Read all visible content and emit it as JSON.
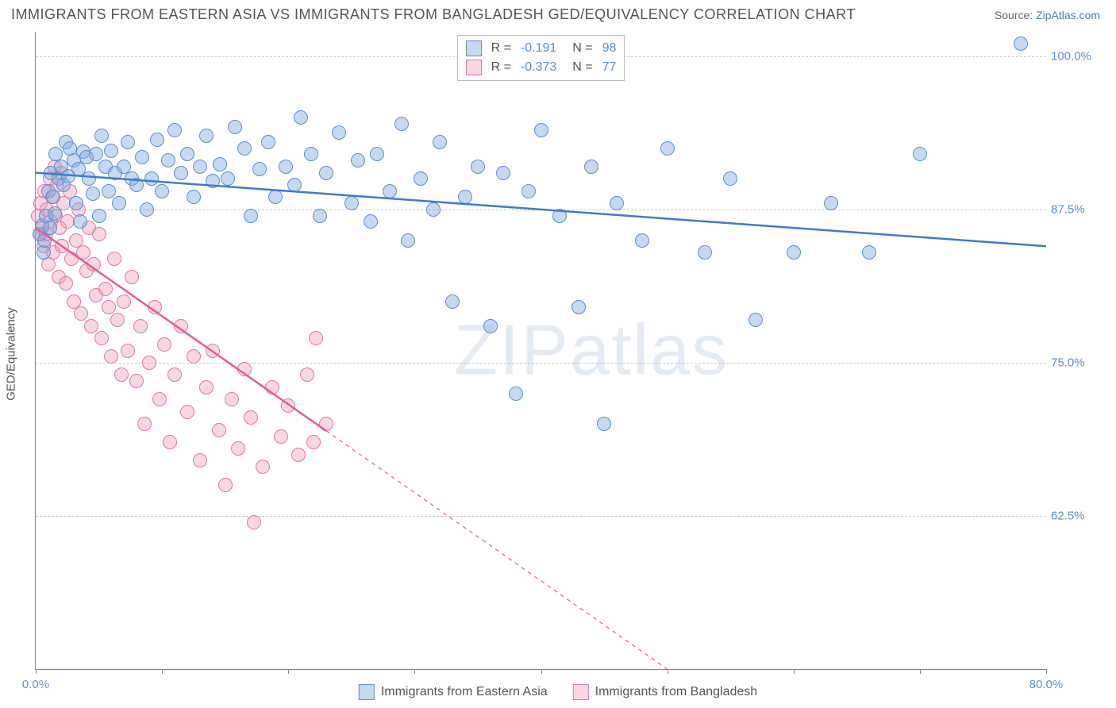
{
  "header": {
    "title": "IMMIGRANTS FROM EASTERN ASIA VS IMMIGRANTS FROM BANGLADESH GED/EQUIVALENCY CORRELATION CHART",
    "source_prefix": "Source: ",
    "source_link": "ZipAtlas.com"
  },
  "chart": {
    "type": "scatter",
    "background_color": "#ffffff",
    "grid_color": "#cccccc",
    "axis_color": "#888888",
    "y_axis_title": "GED/Equivalency",
    "xlim": [
      0,
      80
    ],
    "ylim": [
      50,
      102
    ],
    "x_ticks": [
      0,
      10,
      20,
      30,
      40,
      50,
      60,
      70,
      80
    ],
    "x_tick_labels": {
      "0": "0.0%",
      "80": "80.0%"
    },
    "y_ticks": [
      62.5,
      75.0,
      87.5,
      100.0
    ],
    "y_tick_labels": [
      "62.5%",
      "75.0%",
      "87.5%",
      "100.0%"
    ],
    "tick_label_color": "#5b8fd6",
    "tick_fontsize": 15,
    "series": [
      {
        "name": "Immigrants from Eastern Asia",
        "marker_fill": "rgba(130,170,220,0.45)",
        "marker_stroke": "#5b8fd6",
        "marker_radius": 9,
        "r_label": "R =",
        "r_value": "-0.191",
        "n_label": "N =",
        "n_value": "98",
        "trend": {
          "x1": 0,
          "y1": 90.5,
          "x2": 80,
          "y2": 84.5,
          "color": "#3f7ccc",
          "width": 2.5,
          "solid_until_x": 80
        },
        "points": [
          [
            0.3,
            85.5
          ],
          [
            0.5,
            86.2
          ],
          [
            0.6,
            84.0
          ],
          [
            0.7,
            85.0
          ],
          [
            0.8,
            87.0
          ],
          [
            1.0,
            89.0
          ],
          [
            1.1,
            86.0
          ],
          [
            1.2,
            90.5
          ],
          [
            1.4,
            88.5
          ],
          [
            1.5,
            87.2
          ],
          [
            1.6,
            92.0
          ],
          [
            1.8,
            90.0
          ],
          [
            2.0,
            91.0
          ],
          [
            2.2,
            89.5
          ],
          [
            2.4,
            93.0
          ],
          [
            2.6,
            90.2
          ],
          [
            2.7,
            92.5
          ],
          [
            3.0,
            91.5
          ],
          [
            3.2,
            88.0
          ],
          [
            3.4,
            90.8
          ],
          [
            3.5,
            86.5
          ],
          [
            3.8,
            92.2
          ],
          [
            4.0,
            91.8
          ],
          [
            4.2,
            90.0
          ],
          [
            4.5,
            88.8
          ],
          [
            4.8,
            92.0
          ],
          [
            5.0,
            87.0
          ],
          [
            5.2,
            93.5
          ],
          [
            5.5,
            91.0
          ],
          [
            5.8,
            89.0
          ],
          [
            6.0,
            92.3
          ],
          [
            6.3,
            90.5
          ],
          [
            6.6,
            88.0
          ],
          [
            7.0,
            91.0
          ],
          [
            7.3,
            93.0
          ],
          [
            7.6,
            90.0
          ],
          [
            8.0,
            89.5
          ],
          [
            8.4,
            91.8
          ],
          [
            8.8,
            87.5
          ],
          [
            9.2,
            90.0
          ],
          [
            9.6,
            93.2
          ],
          [
            10.0,
            89.0
          ],
          [
            10.5,
            91.5
          ],
          [
            11.0,
            94.0
          ],
          [
            11.5,
            90.5
          ],
          [
            12.0,
            92.0
          ],
          [
            12.5,
            88.5
          ],
          [
            13.0,
            91.0
          ],
          [
            13.5,
            93.5
          ],
          [
            14.0,
            89.8
          ],
          [
            14.6,
            91.2
          ],
          [
            15.2,
            90.0
          ],
          [
            15.8,
            94.2
          ],
          [
            16.5,
            92.5
          ],
          [
            17.0,
            87.0
          ],
          [
            17.7,
            90.8
          ],
          [
            18.4,
            93.0
          ],
          [
            19.0,
            88.5
          ],
          [
            19.8,
            91.0
          ],
          [
            20.5,
            89.5
          ],
          [
            21.0,
            95.0
          ],
          [
            21.8,
            92.0
          ],
          [
            22.5,
            87.0
          ],
          [
            23.0,
            90.5
          ],
          [
            24.0,
            93.8
          ],
          [
            25.0,
            88.0
          ],
          [
            25.5,
            91.5
          ],
          [
            26.5,
            86.5
          ],
          [
            27.0,
            92.0
          ],
          [
            28.0,
            89.0
          ],
          [
            29.0,
            94.5
          ],
          [
            29.5,
            85.0
          ],
          [
            30.5,
            90.0
          ],
          [
            31.5,
            87.5
          ],
          [
            32.0,
            93.0
          ],
          [
            33.0,
            80.0
          ],
          [
            34.0,
            88.5
          ],
          [
            35.0,
            91.0
          ],
          [
            36.0,
            78.0
          ],
          [
            37.0,
            90.5
          ],
          [
            38.0,
            72.5
          ],
          [
            39.0,
            89.0
          ],
          [
            40.0,
            94.0
          ],
          [
            41.5,
            87.0
          ],
          [
            43.0,
            79.5
          ],
          [
            44.0,
            91.0
          ],
          [
            45.0,
            70.0
          ],
          [
            46.0,
            88.0
          ],
          [
            48.0,
            85.0
          ],
          [
            50.0,
            92.5
          ],
          [
            53.0,
            84.0
          ],
          [
            55.0,
            90.0
          ],
          [
            57.0,
            78.5
          ],
          [
            60.0,
            84.0
          ],
          [
            63.0,
            88.0
          ],
          [
            66.0,
            84.0
          ],
          [
            70.0,
            92.0
          ],
          [
            78.0,
            101.0
          ]
        ]
      },
      {
        "name": "Immigrants from Bangladesh",
        "marker_fill": "rgba(240,155,180,0.40)",
        "marker_stroke": "#e378a0",
        "marker_radius": 9,
        "r_label": "R =",
        "r_value": "-0.373",
        "n_label": "N =",
        "n_value": "77",
        "trend": {
          "x1": 0,
          "y1": 86.0,
          "x2": 50,
          "y2": 50.0,
          "color": "#e85d8f",
          "width": 2.5,
          "solid_until_x": 23
        },
        "points": [
          [
            0.2,
            87.0
          ],
          [
            0.3,
            85.5
          ],
          [
            0.4,
            88.0
          ],
          [
            0.5,
            86.0
          ],
          [
            0.6,
            84.5
          ],
          [
            0.7,
            89.0
          ],
          [
            0.8,
            85.5
          ],
          [
            0.9,
            87.5
          ],
          [
            1.0,
            83.0
          ],
          [
            1.1,
            90.0
          ],
          [
            1.2,
            86.5
          ],
          [
            1.3,
            88.5
          ],
          [
            1.4,
            84.0
          ],
          [
            1.5,
            91.0
          ],
          [
            1.6,
            87.0
          ],
          [
            1.7,
            89.5
          ],
          [
            1.8,
            82.0
          ],
          [
            1.9,
            86.0
          ],
          [
            2.0,
            90.5
          ],
          [
            2.1,
            84.5
          ],
          [
            2.2,
            88.0
          ],
          [
            2.4,
            81.5
          ],
          [
            2.5,
            86.5
          ],
          [
            2.7,
            89.0
          ],
          [
            2.8,
            83.5
          ],
          [
            3.0,
            80.0
          ],
          [
            3.2,
            85.0
          ],
          [
            3.4,
            87.5
          ],
          [
            3.6,
            79.0
          ],
          [
            3.8,
            84.0
          ],
          [
            4.0,
            82.5
          ],
          [
            4.2,
            86.0
          ],
          [
            4.4,
            78.0
          ],
          [
            4.6,
            83.0
          ],
          [
            4.8,
            80.5
          ],
          [
            5.0,
            85.5
          ],
          [
            5.2,
            77.0
          ],
          [
            5.5,
            81.0
          ],
          [
            5.8,
            79.5
          ],
          [
            6.0,
            75.5
          ],
          [
            6.2,
            83.5
          ],
          [
            6.5,
            78.5
          ],
          [
            6.8,
            74.0
          ],
          [
            7.0,
            80.0
          ],
          [
            7.3,
            76.0
          ],
          [
            7.6,
            82.0
          ],
          [
            8.0,
            73.5
          ],
          [
            8.3,
            78.0
          ],
          [
            8.6,
            70.0
          ],
          [
            9.0,
            75.0
          ],
          [
            9.4,
            79.5
          ],
          [
            9.8,
            72.0
          ],
          [
            10.2,
            76.5
          ],
          [
            10.6,
            68.5
          ],
          [
            11.0,
            74.0
          ],
          [
            11.5,
            78.0
          ],
          [
            12.0,
            71.0
          ],
          [
            12.5,
            75.5
          ],
          [
            13.0,
            67.0
          ],
          [
            13.5,
            73.0
          ],
          [
            14.0,
            76.0
          ],
          [
            14.5,
            69.5
          ],
          [
            15.0,
            65.0
          ],
          [
            15.5,
            72.0
          ],
          [
            16.0,
            68.0
          ],
          [
            16.5,
            74.5
          ],
          [
            17.0,
            70.5
          ],
          [
            17.3,
            62.0
          ],
          [
            18.0,
            66.5
          ],
          [
            18.7,
            73.0
          ],
          [
            19.4,
            69.0
          ],
          [
            20.0,
            71.5
          ],
          [
            20.8,
            67.5
          ],
          [
            21.5,
            74.0
          ],
          [
            22.0,
            68.5
          ],
          [
            22.2,
            77.0
          ],
          [
            23.0,
            70.0
          ]
        ]
      }
    ],
    "legend_top": {
      "text_color": "#555555",
      "value_color": "#5b8fd6"
    },
    "watermark": "ZIPatlas"
  }
}
